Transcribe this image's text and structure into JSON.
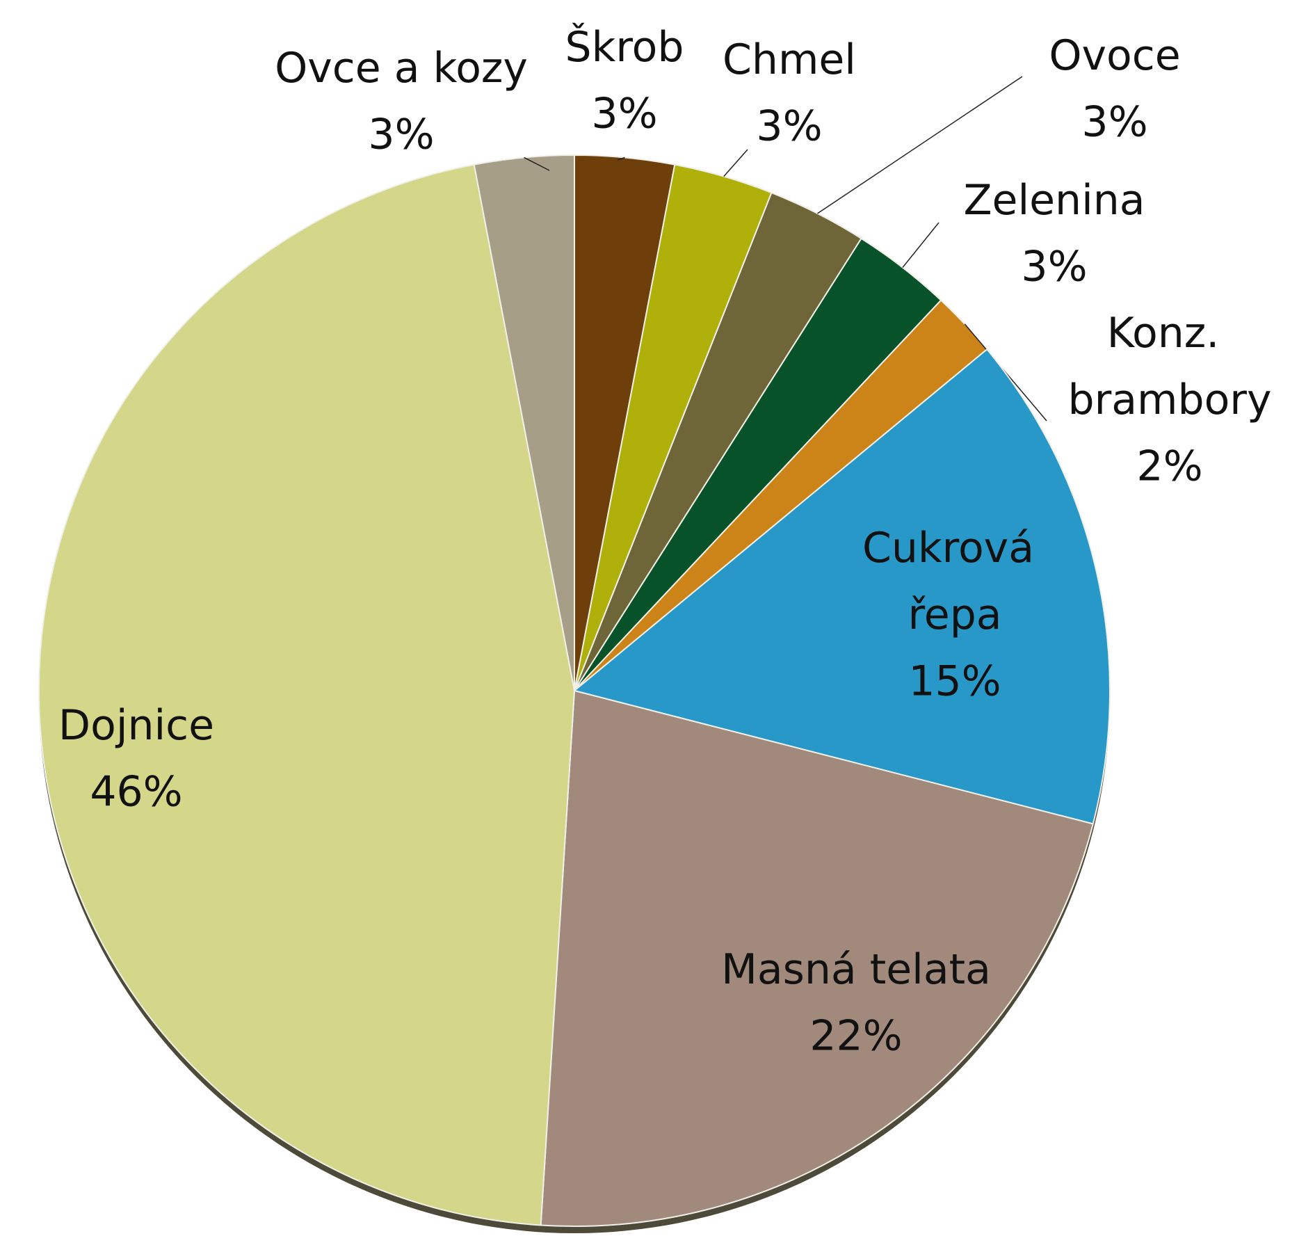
{
  "chart_data": {
    "type": "pie",
    "categories": [
      "Škrob",
      "Chmel",
      "Ovoce",
      "Zelenina",
      "Konz. brambory",
      "Cukrová řepa",
      "Masná telata",
      "Dojnice",
      "Ovce a kozy"
    ],
    "values": [
      3,
      3,
      3,
      3,
      2,
      15,
      22,
      46,
      3
    ],
    "value_labels": [
      "3%",
      "3%",
      "3%",
      "3%",
      "2%",
      "15%",
      "22%",
      "46%",
      "3%"
    ],
    "colors": [
      "#6e3f0a",
      "#b0b00a",
      "#6e6538",
      "#08522a",
      "#cc8418",
      "#2898c8",
      "#a18a7c",
      "#d4d689",
      "#a79e88"
    ]
  }
}
